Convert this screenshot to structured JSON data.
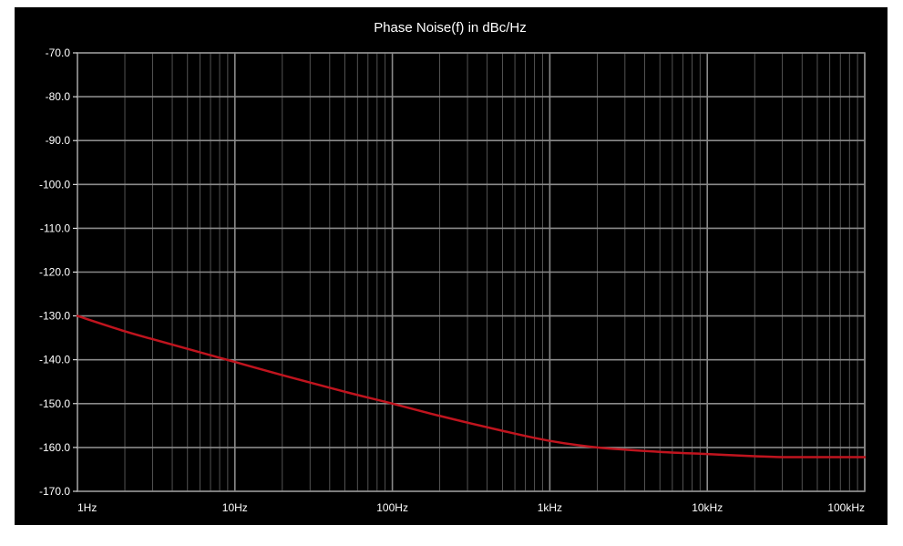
{
  "chart_data": {
    "type": "line",
    "title": "Phase Noise(f) in dBc/Hz",
    "xlabel": "",
    "ylabel": "",
    "x_scale": "log",
    "xlim": [
      1,
      100000
    ],
    "ylim": [
      -170,
      -70
    ],
    "grid": true,
    "colors": {
      "background": "#000000",
      "grid": "#8a8a8a",
      "series": "#c0141e",
      "text": "#ffffff"
    },
    "y_ticks": [
      "-70.0",
      "-80.0",
      "-90.0",
      "-100.0",
      "-110.0",
      "-120.0",
      "-130.0",
      "-140.0",
      "-150.0",
      "-160.0",
      "-170.0"
    ],
    "x_ticks": [
      {
        "value": 1,
        "label": "1Hz"
      },
      {
        "value": 10,
        "label": "10Hz"
      },
      {
        "value": 100,
        "label": "100Hz"
      },
      {
        "value": 1000,
        "label": "1kHz"
      },
      {
        "value": 10000,
        "label": "10kHz"
      },
      {
        "value": 100000,
        "label": "100kHz"
      }
    ],
    "series": [
      {
        "x": [
          1,
          2,
          3,
          5,
          10,
          20,
          50,
          100,
          200,
          500,
          1000,
          2000,
          5000,
          10000,
          20000,
          30000,
          50000,
          100000
        ],
        "y": [
          -130.0,
          -133.5,
          -135.3,
          -137.5,
          -140.5,
          -143.5,
          -147.3,
          -150.0,
          -152.8,
          -156.2,
          -158.5,
          -160.0,
          -161.0,
          -161.5,
          -162.0,
          -162.2,
          -162.2,
          -162.2
        ]
      }
    ]
  }
}
